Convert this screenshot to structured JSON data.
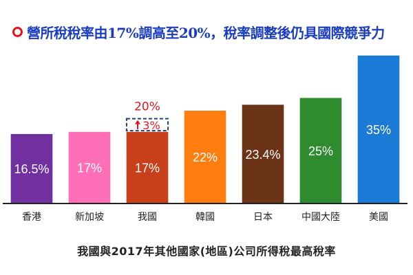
{
  "headline": "營所稅稅率由17%調高至20%，稅率調整後仍具國際競爭力",
  "colors": {
    "headline_text": "#1a3dbf",
    "headline_marker": "#e8141c",
    "axis": "#222222",
    "increase_label": "#e8141c",
    "increase_box_border": "#1f3f7a"
  },
  "chart_data": {
    "type": "bar",
    "title": "我國與2017年其他國家(地區)公司所得稅最高稅率",
    "categories": [
      "香港",
      "新加坡",
      "我國",
      "韓國",
      "日本",
      "中國大陸",
      "美國"
    ],
    "values": [
      16.5,
      17,
      17,
      22,
      23.4,
      25,
      35
    ],
    "value_labels": [
      "16.5%",
      "17%",
      "17%",
      "22%",
      "23.4%",
      "25%",
      "35%"
    ],
    "bar_colors": [
      "#7030a0",
      "#ff6fb7",
      "#c8401a",
      "#ff7d11",
      "#6b3317",
      "#2e8b2e",
      "#1a7ad6"
    ],
    "label_colors": [
      "#ffffff",
      "#ffffff",
      "#ffffff",
      "#ffffff",
      "#ffffff",
      "#ffffff",
      "#ffffff"
    ],
    "highlight": {
      "category": "我國",
      "increase": 3,
      "increase_label": "3%",
      "new_value": 20,
      "new_value_label": "20%"
    },
    "ylim": [
      0,
      35
    ],
    "grid": false,
    "legend": "none"
  }
}
